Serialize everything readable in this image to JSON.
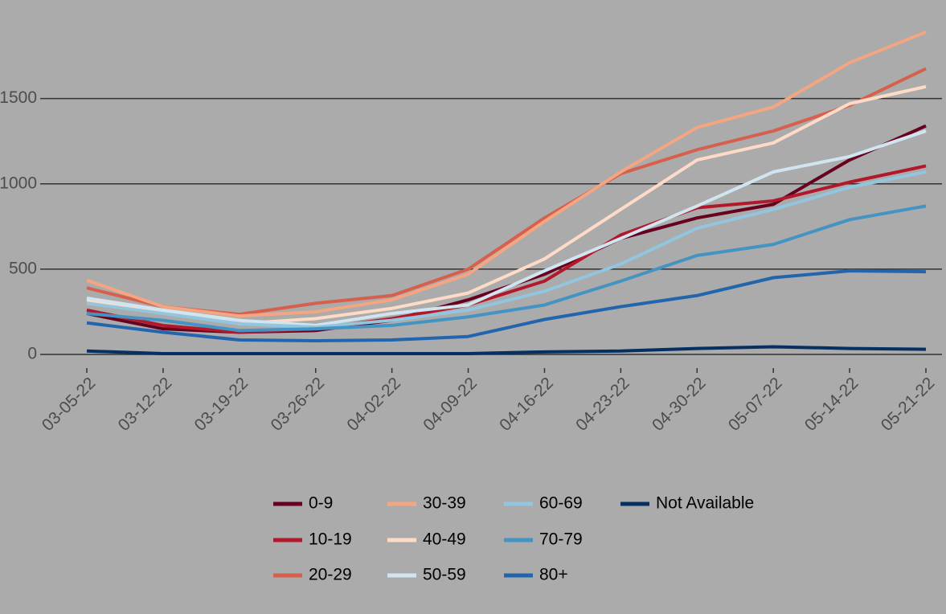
{
  "chart_data": {
    "type": "line",
    "x": [
      "03-05-22",
      "03-12-22",
      "03-19-22",
      "03-26-22",
      "04-02-22",
      "04-09-22",
      "04-16-22",
      "04-23-22",
      "04-30-22",
      "05-07-22",
      "05-14-22",
      "05-21-22"
    ],
    "series": [
      {
        "name": "0-9",
        "color": "#67001f",
        "values": [
          240,
          150,
          130,
          140,
          200,
          320,
          470,
          680,
          800,
          880,
          1140,
          1340
        ]
      },
      {
        "name": "10-19",
        "color": "#b2182b",
        "values": [
          260,
          170,
          130,
          150,
          210,
          290,
          430,
          700,
          860,
          900,
          1010,
          1105
        ]
      },
      {
        "name": "20-29",
        "color": "#d6604d",
        "values": [
          390,
          280,
          235,
          300,
          345,
          500,
          800,
          1060,
          1200,
          1310,
          1460,
          1675
        ]
      },
      {
        "name": "30-39",
        "color": "#f4a582",
        "values": [
          435,
          280,
          225,
          250,
          320,
          470,
          780,
          1070,
          1330,
          1450,
          1710,
          1890
        ]
      },
      {
        "name": "40-49",
        "color": "#fddbc7",
        "values": [
          320,
          250,
          180,
          210,
          270,
          360,
          560,
          850,
          1140,
          1240,
          1470,
          1570
        ]
      },
      {
        "name": "50-59",
        "color": "#d1e5f0",
        "values": [
          330,
          260,
          200,
          170,
          240,
          290,
          490,
          680,
          870,
          1070,
          1160,
          1310
        ]
      },
      {
        "name": "60-69",
        "color": "#92c5de",
        "values": [
          300,
          240,
          180,
          160,
          200,
          260,
          370,
          530,
          740,
          850,
          980,
          1070
        ]
      },
      {
        "name": "70-79",
        "color": "#4393c3",
        "values": [
          240,
          200,
          140,
          150,
          170,
          220,
          290,
          430,
          580,
          645,
          790,
          870
        ]
      },
      {
        "name": "80+",
        "color": "#2166ac",
        "values": [
          185,
          130,
          85,
          80,
          85,
          105,
          205,
          280,
          345,
          450,
          490,
          485
        ]
      },
      {
        "name": "Not Available",
        "color": "#053061",
        "values": [
          20,
          5,
          5,
          5,
          5,
          5,
          15,
          20,
          35,
          45,
          35,
          30
        ]
      }
    ],
    "ylim": [
      -80,
      2040
    ],
    "yticks": [
      0,
      500,
      1000,
      1500
    ],
    "grid": true
  }
}
